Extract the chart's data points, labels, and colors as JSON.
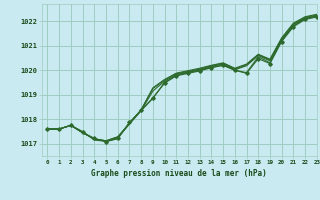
{
  "background_color": "#c8eaf0",
  "grid_color": "#a0ccc0",
  "line_color": "#2d6a2d",
  "title": "Graphe pression niveau de la mer (hPa)",
  "title_color": "#1a4a1a",
  "xlim": [
    -0.5,
    23
  ],
  "ylim": [
    1016.5,
    1022.7
  ],
  "yticks": [
    1017,
    1018,
    1019,
    1020,
    1021,
    1022
  ],
  "xticks": [
    0,
    1,
    2,
    3,
    4,
    5,
    6,
    7,
    8,
    9,
    10,
    11,
    12,
    13,
    14,
    15,
    16,
    17,
    18,
    19,
    20,
    21,
    22,
    23
  ],
  "series": [
    [
      1017.6,
      1017.6,
      1017.75,
      1017.5,
      1017.15,
      1017.1,
      1017.2,
      1017.85,
      1018.35,
      1018.85,
      1019.5,
      1019.78,
      1019.9,
      1020.0,
      1020.12,
      1020.2,
      1020.0,
      1019.9,
      1020.55,
      1020.3,
      1021.2,
      1021.8,
      1022.1,
      1022.2
    ],
    [
      1017.6,
      1017.6,
      1017.75,
      1017.45,
      1017.2,
      1017.1,
      1017.25,
      1017.8,
      1018.35,
      1019.15,
      1019.55,
      1019.82,
      1019.92,
      1020.02,
      1020.15,
      1020.25,
      1020.02,
      1020.18,
      1020.6,
      1020.38,
      1021.25,
      1021.85,
      1022.12,
      1022.22
    ],
    [
      1017.6,
      1017.6,
      1017.75,
      1017.45,
      1017.2,
      1017.12,
      1017.28,
      1017.82,
      1018.38,
      1019.25,
      1019.6,
      1019.85,
      1019.95,
      1020.05,
      1020.18,
      1020.28,
      1020.05,
      1020.22,
      1020.63,
      1020.42,
      1021.28,
      1021.88,
      1022.15,
      1022.25
    ],
    [
      1017.6,
      1017.6,
      1017.75,
      1017.45,
      1017.2,
      1017.12,
      1017.28,
      1017.82,
      1018.38,
      1019.28,
      1019.62,
      1019.88,
      1019.98,
      1020.08,
      1020.2,
      1020.3,
      1020.08,
      1020.25,
      1020.65,
      1020.45,
      1021.32,
      1021.92,
      1022.18,
      1022.28
    ]
  ],
  "marker_series_idx": 0,
  "outlier_series": [
    1017.6,
    1017.6,
    1017.75,
    1017.47,
    1017.22,
    1017.08,
    1017.22,
    1017.87,
    1018.37,
    1018.87,
    1019.47,
    1019.77,
    1019.87,
    1019.97,
    1020.1,
    1020.2,
    1020.0,
    1019.87,
    1020.47,
    1020.27,
    1021.17,
    1021.77,
    1022.07,
    1022.17
  ]
}
